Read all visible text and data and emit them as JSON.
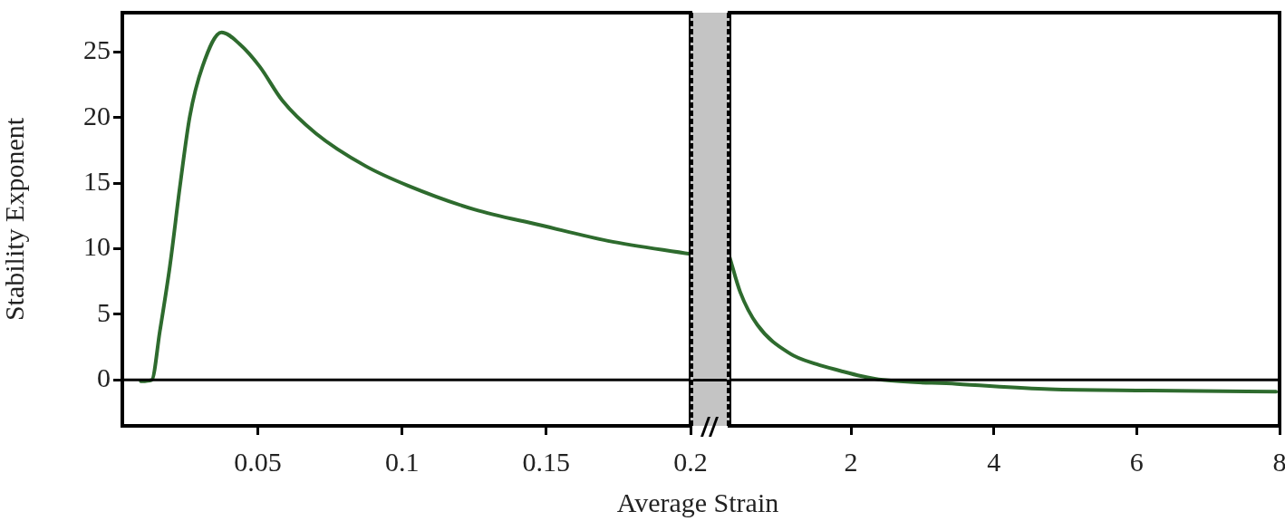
{
  "chart_data": [
    {
      "type": "line",
      "ylabel": "Stability Exponent",
      "xlabel": "Average Strain",
      "line_style": "solid",
      "marker": "none",
      "legend": false,
      "xlim": [
        0.003,
        0.2
      ],
      "xticks": [
        0.05,
        0.1,
        0.15,
        0.2
      ],
      "ylim": [
        -3.5,
        28
      ],
      "yticks": [
        0,
        5,
        10,
        15,
        20,
        25
      ],
      "ref_lines": [
        {
          "axis": "y",
          "value": 0,
          "color": "#000000"
        }
      ],
      "series": [
        {
          "color": "#2e6b2e",
          "x": [
            0.0094,
            0.0132,
            0.016,
            0.0195,
            0.023,
            0.0264,
            0.0308,
            0.0374,
            0.0437,
            0.0506,
            0.0585,
            0.0701,
            0.0874,
            0.1022,
            0.125,
            0.148,
            0.1714,
            0.2
          ],
          "values": [
            -0.1,
            0,
            3.7,
            8.7,
            14.8,
            20.1,
            23.9,
            26.5,
            25.6,
            23.9,
            21.3,
            18.8,
            16.3,
            14.8,
            13.0,
            11.8,
            10.6,
            9.6
          ]
        }
      ]
    },
    {
      "type": "line",
      "line_style": "solid",
      "marker": "none",
      "legend": false,
      "tick_labels": "x",
      "xlim": [
        0.3,
        8
      ],
      "xticks": [
        2,
        4,
        6,
        8
      ],
      "ylim": [
        -3.5,
        28
      ],
      "yticks": [
        0,
        5,
        10,
        15,
        20,
        25
      ],
      "ref_lines": [
        {
          "axis": "y",
          "value": 0,
          "color": "#000000"
        }
      ],
      "series": [
        {
          "color": "#2e6b2e",
          "x": [
            0.3,
            0.45,
            0.69,
            1.15,
            1.52,
            1.85,
            2.14,
            2.45,
            3.48,
            4.78,
            6.18,
            7.95
          ],
          "values": [
            9.4,
            6.7,
            4.2,
            2.0,
            1.2,
            0.7,
            0.3,
            0.0,
            -0.3,
            -0.7,
            -0.8,
            -0.9
          ]
        }
      ]
    }
  ]
}
